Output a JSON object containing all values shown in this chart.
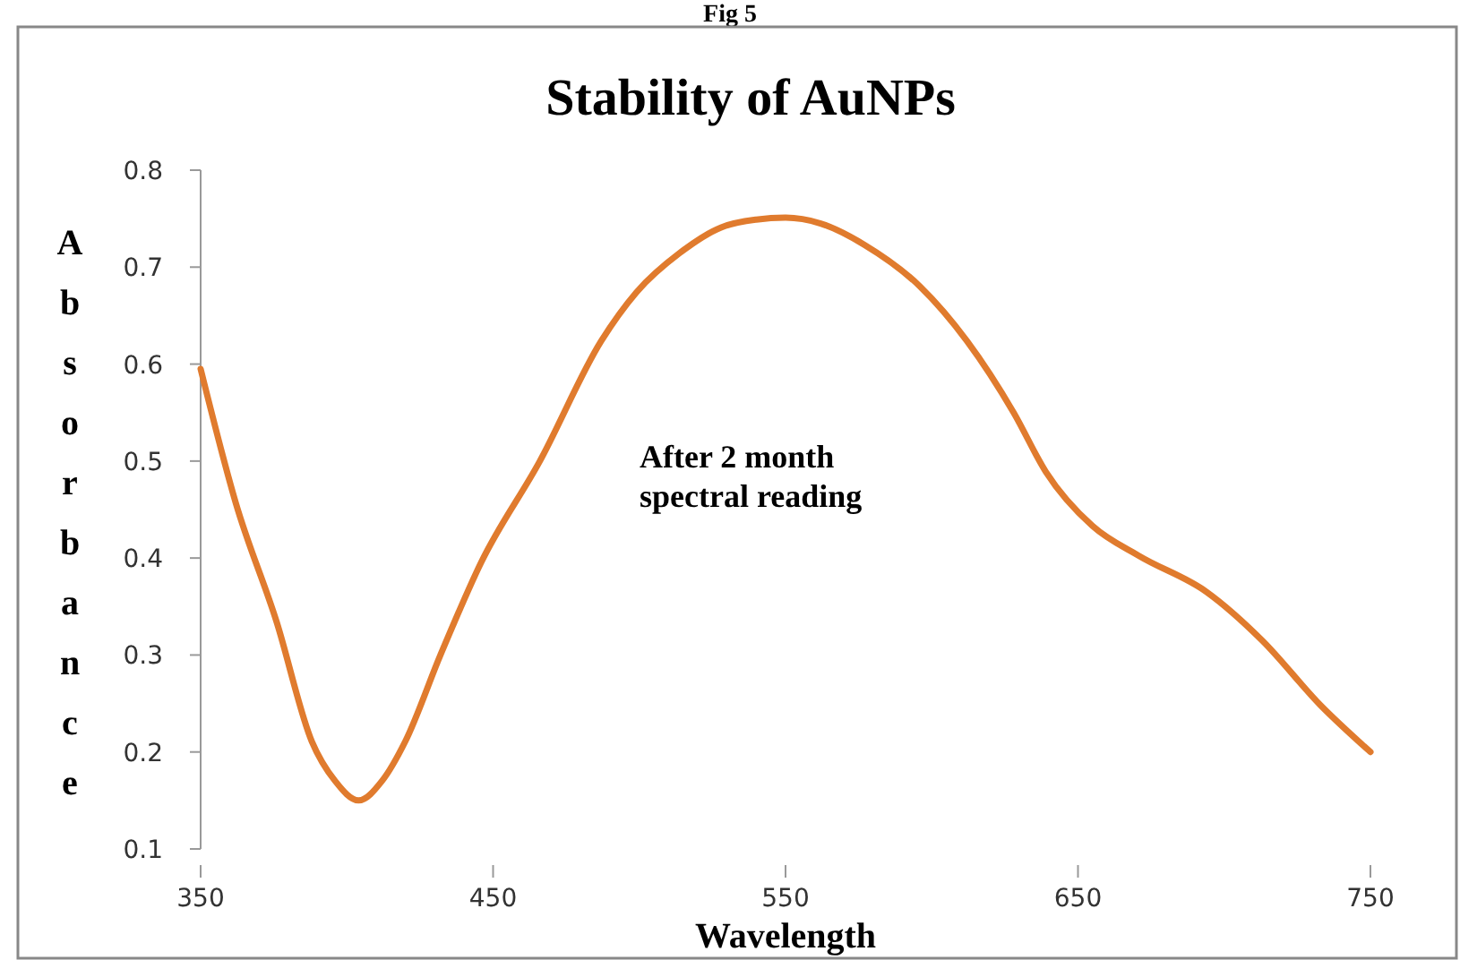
{
  "chart_data": {
    "type": "line",
    "title": "Stability of AuNPs",
    "xlabel": "Wavelength",
    "ylabel": "Absorbance",
    "annotations": [
      "Fig 5",
      "After 2 month\nspectral reading"
    ],
    "xlim": [
      350,
      750
    ],
    "xticks": [
      350,
      450,
      550,
      650,
      750
    ],
    "ylim": [
      0.1,
      0.8
    ],
    "yticks": [
      0.1,
      0.2,
      0.3,
      0.4,
      0.5,
      0.6,
      0.7,
      0.8
    ],
    "marker": "none",
    "line_style": "solid",
    "series": [
      {
        "color": "#e07b2e",
        "x": [
          350,
          362,
          376,
          388,
          396,
          404,
          412,
          420,
          432,
          446,
          466,
          487,
          499,
          514,
          528,
          540,
          550,
          562,
          577,
          596,
          612,
          628,
          639,
          655,
          671,
          694,
          713,
          733,
          750
        ],
        "values": [
          0.595,
          0.457,
          0.334,
          0.211,
          0.17,
          0.15,
          0.17,
          0.211,
          0.3,
          0.396,
          0.5,
          0.624,
          0.674,
          0.715,
          0.741,
          0.749,
          0.751,
          0.745,
          0.723,
          0.68,
          0.624,
          0.55,
          0.489,
          0.433,
          0.402,
          0.365,
          0.315,
          0.248,
          0.2
        ]
      }
    ]
  }
}
